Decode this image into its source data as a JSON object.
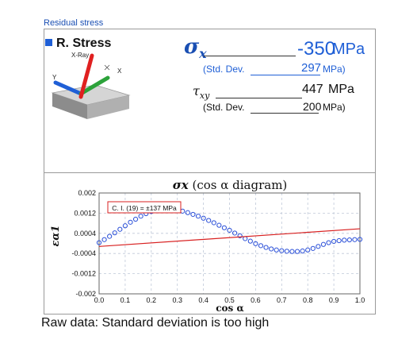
{
  "section_title": "Residual stress",
  "stress_panel": {
    "header_label": "R. Stress",
    "diagram_labels": {
      "xray": "X-Ray",
      "axis_y": "Y",
      "axis_x": "X"
    },
    "sigma_x": {
      "symbol": "σx",
      "value": "-350",
      "unit": "MPa"
    },
    "sigma_std": {
      "label": "(Std. Dev.",
      "value": "297",
      "unit": "MPa)"
    },
    "tau_xy": {
      "symbol": "τxy",
      "value": "447",
      "unit": "MPa"
    },
    "tau_std": {
      "label": "(Std. Dev.",
      "value": "200",
      "unit": "MPa)"
    }
  },
  "chart_data": {
    "type": "scatter",
    "title": "σx (cos α diagram)",
    "xlabel": "cos α",
    "ylabel": "εα1",
    "xlim": [
      0.0,
      1.0
    ],
    "ylim": [
      -0.002,
      0.002
    ],
    "x_ticks": [
      "0.0",
      "0.1",
      "0.2",
      "0.3",
      "0.4",
      "0.5",
      "0.6",
      "0.7",
      "0.8",
      "0.9",
      "1.0"
    ],
    "y_ticks": [
      "0.002",
      "0.0012",
      "0.0004",
      "-0.0004",
      "-0.0012",
      "-0.002"
    ],
    "y_tick_values": [
      0.002,
      0.0012,
      0.0004,
      -0.0004,
      -0.0012,
      -0.002
    ],
    "grid": true,
    "annotation": "C. I. (19) = ±137 MPa",
    "series": [
      {
        "kind": "markers",
        "color": "#2a4fd8",
        "x": [
          0.0,
          0.02,
          0.04,
          0.06,
          0.08,
          0.1,
          0.12,
          0.14,
          0.16,
          0.18,
          0.2,
          0.22,
          0.24,
          0.26,
          0.28,
          0.3,
          0.32,
          0.34,
          0.36,
          0.38,
          0.4,
          0.42,
          0.44,
          0.46,
          0.48,
          0.5,
          0.52,
          0.54,
          0.56,
          0.58,
          0.6,
          0.62,
          0.64,
          0.66,
          0.68,
          0.7,
          0.72,
          0.74,
          0.76,
          0.78,
          0.8,
          0.82,
          0.84,
          0.86,
          0.88,
          0.9,
          0.92,
          0.94,
          0.96,
          0.98,
          1.0
        ],
        "y": [
          3e-05,
          0.00015,
          0.00028,
          0.00042,
          0.00056,
          0.0007,
          0.00084,
          0.00096,
          0.00108,
          0.00118,
          0.00126,
          0.00132,
          0.00135,
          0.00136,
          0.00135,
          0.00132,
          0.00128,
          0.00122,
          0.00115,
          0.00108,
          0.001,
          0.00091,
          0.00082,
          0.00072,
          0.00062,
          0.00052,
          0.00041,
          0.0003,
          0.00019,
          9e-05,
          -1e-05,
          -9e-05,
          -0.00016,
          -0.00022,
          -0.00026,
          -0.00029,
          -0.00031,
          -0.00032,
          -0.00032,
          -0.0003,
          -0.00026,
          -0.0002,
          -0.00012,
          -4e-05,
          3e-05,
          8e-05,
          0.00011,
          0.00013,
          0.00014,
          0.00015,
          0.00016
        ]
      },
      {
        "kind": "line",
        "color": "#d82020",
        "x": [
          0.0,
          1.0
        ],
        "y": [
          -0.00012,
          0.00058
        ]
      }
    ]
  },
  "caption": "Raw data: Standard deviation is too high"
}
